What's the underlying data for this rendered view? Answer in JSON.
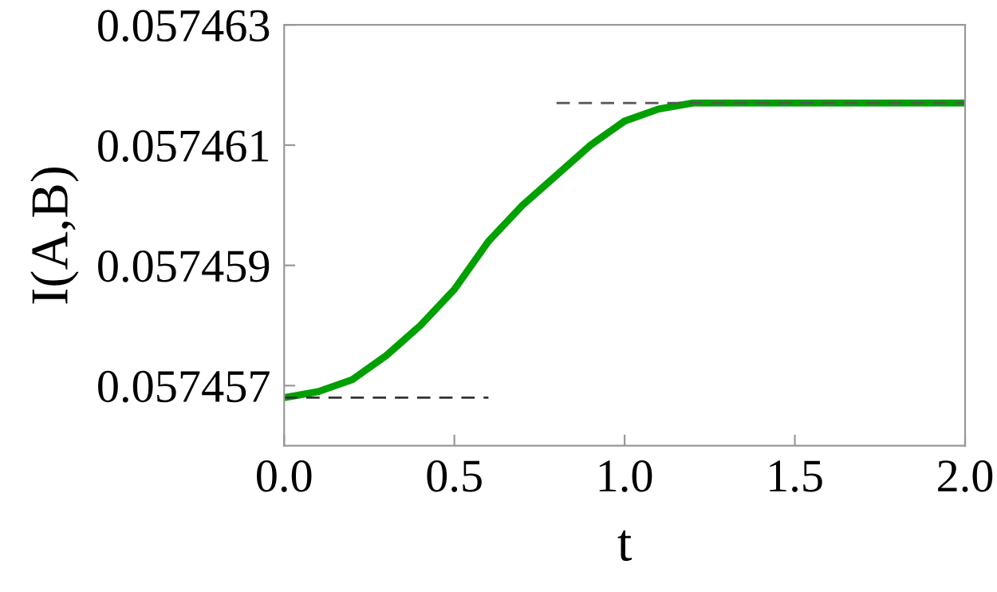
{
  "chart_data": {
    "type": "line",
    "xlabel": "t",
    "ylabel": "I(A,B)",
    "xlim": [
      0.0,
      2.0
    ],
    "xticks": [
      {
        "value": 0,
        "label": "0.0"
      },
      0.5,
      {
        "value": 1,
        "label": "1.0"
      },
      1.5,
      {
        "value": 2,
        "label": "2.0"
      }
    ],
    "ylim": [
      0.057456,
      0.057463
    ],
    "yticks": [
      0.057457,
      0.057459,
      0.057461,
      0.057463
    ],
    "grid": false,
    "legend": false,
    "series": [
      {
        "color": "#00a000",
        "line_style": "solid",
        "x": [
          0,
          0.1,
          0.2,
          0.3,
          0.4,
          0.5,
          0.6,
          0.7,
          0.8,
          0.9,
          1.0,
          1.1,
          1.2,
          1.3,
          1.5,
          2.0
        ],
        "values": [
          0.0574568,
          0.0574569,
          0.0574571,
          0.0574575,
          0.057458,
          0.0574586,
          0.0574594,
          0.05746,
          0.0574605,
          0.057461,
          0.0574614,
          0.0574616,
          0.0574617,
          0.0574617,
          0.0574617,
          0.0574617
        ]
      },
      {
        "color": "#333333",
        "line_style": "dashed",
        "x": [
          0,
          0.6
        ],
        "values": [
          0.0574568,
          0.0574568
        ]
      },
      {
        "color": "#555555",
        "line_style": "dashed",
        "x": [
          0.8,
          2.0
        ],
        "values": [
          0.0574617,
          0.0574617
        ]
      }
    ]
  }
}
